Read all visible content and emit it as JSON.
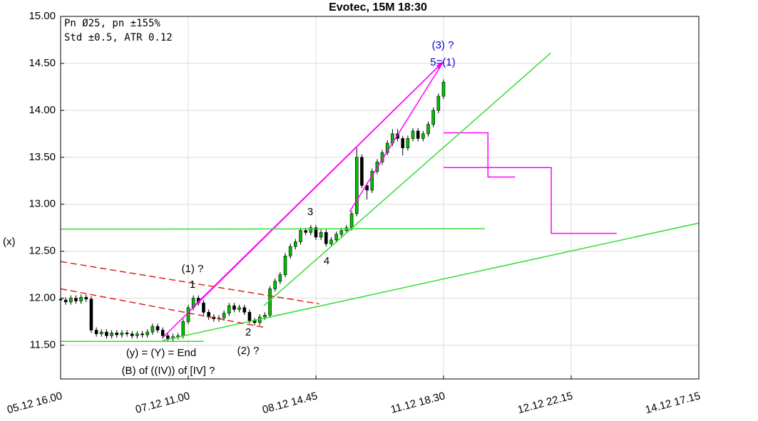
{
  "chart_data": {
    "type": "candlestick",
    "title": "Evotec, 15M 18:30",
    "info": [
      "Pn  Ø25, pn ±155%",
      "Std ±0.5, ATR 0.12"
    ],
    "y_label": "(x)",
    "up_color": "#00c000",
    "down_color": "#000000",
    "grid": true,
    "xlim": [
      0,
      125
    ],
    "xticks": [
      {
        "value": 0,
        "label": "05.12 16.00"
      },
      {
        "value": 25,
        "label": "07.12 11.00"
      },
      {
        "value": 50,
        "label": "08.12 14.45"
      },
      {
        "value": 75,
        "label": "11.12 18.30"
      },
      {
        "value": 100,
        "label": "12.12 22.15"
      },
      {
        "value": 125,
        "label": "14.12 17.15"
      }
    ],
    "ylim": [
      11.14,
      15.0
    ],
    "yticks": [
      {
        "value": 11.5,
        "label": "11.50"
      },
      {
        "value": 12,
        "label": "12.00"
      },
      {
        "value": 12.5,
        "label": "12.50"
      },
      {
        "value": 13,
        "label": "13.00"
      },
      {
        "value": 13.5,
        "label": "13.50"
      },
      {
        "value": 14,
        "label": "14.00"
      },
      {
        "value": 14.5,
        "label": "14.50"
      },
      {
        "value": 15,
        "label": "15.00"
      }
    ],
    "x": [
      0,
      1,
      2,
      3,
      4,
      5,
      6,
      7,
      8,
      9,
      10,
      11,
      12,
      13,
      14,
      15,
      16,
      17,
      18,
      19,
      20,
      21,
      22,
      23,
      24,
      25,
      26,
      27,
      28,
      29,
      30,
      31,
      32,
      33,
      34,
      35,
      36,
      37,
      38,
      39,
      40,
      41,
      42,
      43,
      44,
      45,
      46,
      47,
      48,
      49,
      50,
      51,
      52,
      53,
      54,
      55,
      56,
      57,
      58,
      59,
      60,
      61,
      62,
      63,
      64,
      65,
      66,
      67,
      68,
      69,
      70,
      71,
      72,
      73,
      74,
      75
    ],
    "open": [
      11.99,
      11.98,
      11.96,
      12.0,
      11.97,
      12.01,
      11.99,
      11.66,
      11.62,
      11.64,
      11.6,
      11.63,
      11.61,
      11.63,
      11.62,
      11.6,
      11.62,
      11.61,
      11.64,
      11.7,
      11.66,
      11.6,
      11.57,
      11.59,
      11.6,
      11.75,
      11.9,
      12.0,
      11.95,
      11.85,
      11.8,
      11.78,
      11.79,
      11.84,
      11.92,
      11.88,
      11.9,
      11.85,
      11.76,
      11.74,
      11.8,
      11.82,
      12.1,
      12.18,
      12.25,
      12.45,
      12.55,
      12.6,
      12.72,
      12.7,
      12.75,
      12.65,
      12.7,
      12.58,
      12.62,
      12.68,
      12.72,
      12.75,
      12.9,
      13.5,
      13.2,
      13.15,
      13.35,
      13.45,
      13.55,
      13.65,
      13.75,
      13.7,
      13.6,
      13.7,
      13.78,
      13.7,
      13.75,
      13.85,
      14.0,
      14.15
    ],
    "high": [
      12.02,
      12.01,
      12.03,
      12.03,
      12.04,
      12.04,
      12.02,
      11.69,
      11.67,
      11.67,
      11.66,
      11.66,
      11.66,
      11.66,
      11.65,
      11.65,
      11.65,
      11.67,
      11.73,
      11.73,
      11.69,
      11.63,
      11.62,
      11.63,
      11.78,
      11.93,
      12.03,
      12.03,
      11.98,
      11.88,
      11.83,
      11.82,
      11.87,
      11.95,
      11.95,
      11.93,
      11.93,
      11.88,
      11.79,
      11.83,
      11.85,
      12.13,
      12.21,
      12.28,
      12.48,
      12.58,
      12.63,
      12.75,
      12.75,
      12.78,
      12.78,
      12.73,
      12.73,
      12.65,
      12.71,
      12.75,
      12.78,
      12.93,
      13.6,
      13.53,
      13.23,
      13.38,
      13.48,
      13.58,
      13.68,
      13.8,
      13.8,
      13.73,
      13.73,
      13.81,
      13.81,
      13.78,
      13.88,
      14.03,
      14.18,
      14.33
    ],
    "low": [
      11.95,
      11.93,
      11.93,
      11.94,
      11.94,
      11.96,
      11.63,
      11.59,
      11.59,
      11.57,
      11.57,
      11.58,
      11.58,
      11.59,
      11.57,
      11.57,
      11.58,
      11.58,
      11.61,
      11.63,
      11.57,
      11.54,
      11.54,
      11.56,
      11.57,
      11.72,
      11.87,
      11.92,
      11.82,
      11.77,
      11.75,
      11.75,
      11.76,
      11.81,
      11.85,
      11.85,
      11.82,
      11.73,
      11.71,
      11.71,
      11.77,
      11.79,
      12.07,
      12.15,
      12.22,
      12.42,
      12.52,
      12.57,
      12.67,
      12.67,
      12.62,
      12.62,
      12.55,
      12.55,
      12.59,
      12.65,
      12.69,
      12.72,
      12.87,
      13.17,
      13.05,
      13.12,
      13.32,
      13.42,
      13.52,
      13.62,
      13.67,
      13.52,
      13.57,
      13.67,
      13.67,
      13.67,
      13.72,
      13.82,
      13.97,
      14.12
    ],
    "close": [
      11.98,
      11.96,
      12.0,
      11.97,
      12.01,
      11.99,
      11.66,
      11.62,
      11.64,
      11.6,
      11.63,
      11.61,
      11.63,
      11.62,
      11.6,
      11.62,
      11.61,
      11.64,
      11.7,
      11.66,
      11.6,
      11.57,
      11.59,
      11.6,
      11.75,
      11.9,
      12.0,
      11.95,
      11.85,
      11.8,
      11.78,
      11.79,
      11.84,
      11.92,
      11.88,
      11.9,
      11.85,
      11.76,
      11.74,
      11.8,
      11.82,
      12.1,
      12.18,
      12.25,
      12.45,
      12.55,
      12.6,
      12.72,
      12.7,
      12.75,
      12.65,
      12.7,
      12.58,
      12.62,
      12.68,
      12.72,
      12.75,
      12.9,
      13.5,
      13.2,
      13.15,
      13.35,
      13.45,
      13.55,
      13.65,
      13.75,
      13.7,
      13.6,
      13.7,
      13.78,
      13.7,
      13.75,
      13.85,
      14.0,
      14.15,
      14.3
    ],
    "lines": [
      {
        "color": "#ff00ff",
        "dashed": false,
        "x": [
          20,
          75
        ],
        "y": [
          11.58,
          14.52
        ]
      },
      {
        "color": "#ff00ff",
        "dashed": false,
        "x": [
          25.8,
          75
        ],
        "y": [
          11.9,
          14.52
        ]
      },
      {
        "color": "#ff00ff",
        "dashed": false,
        "x": [
          56.6,
          75
        ],
        "y": [
          12.92,
          14.52
        ]
      },
      {
        "color": "#ff00ff",
        "dashed": false,
        "x": [
          75,
          83.7,
          83.7,
          89
        ],
        "y": [
          13.76,
          13.76,
          13.29,
          13.29
        ]
      },
      {
        "color": "#ff00ff",
        "dashed": false,
        "x": [
          75,
          96.1,
          96.1,
          108.9
        ],
        "y": [
          13.39,
          13.39,
          12.69,
          12.69
        ]
      },
      {
        "color": "#33dd33",
        "dashed": false,
        "x": [
          0,
          28
        ],
        "y": [
          11.54,
          11.54
        ]
      },
      {
        "color": "#33dd33",
        "dashed": false,
        "x": [
          0,
          83.1
        ],
        "y": [
          12.735,
          12.74
        ]
      },
      {
        "color": "#33dd33",
        "dashed": false,
        "x": [
          20,
          125
        ],
        "y": [
          11.55,
          12.8
        ]
      },
      {
        "color": "#33dd33",
        "dashed": false,
        "x": [
          39.8,
          96
        ],
        "y": [
          11.92,
          14.61
        ]
      },
      {
        "color": "#e02020",
        "dashed": true,
        "x": [
          0,
          50.6
        ],
        "y": [
          12.39,
          11.94
        ]
      },
      {
        "color": "#e02020",
        "dashed": true,
        "x": [
          0,
          39.8
        ],
        "y": [
          12.1,
          11.69
        ]
      }
    ],
    "annotations": [
      {
        "text": "(1) ?",
        "color": "#000000"
      },
      {
        "text": "1",
        "color": "#000000"
      },
      {
        "text": "2",
        "color": "#000000"
      },
      {
        "text": "(2) ?",
        "color": "#000000"
      },
      {
        "text": "3",
        "color": "#000000"
      },
      {
        "text": "4",
        "color": "#000000"
      },
      {
        "text": "(3) ?",
        "color": "#0000dd"
      },
      {
        "text": "5=(1)",
        "color": "#0000dd"
      },
      {
        "text": "(y) = (Y) = End",
        "color": "#000000"
      },
      {
        "text": "(B) of ((IV)) of [IV] ?",
        "color": "#000000"
      }
    ]
  }
}
